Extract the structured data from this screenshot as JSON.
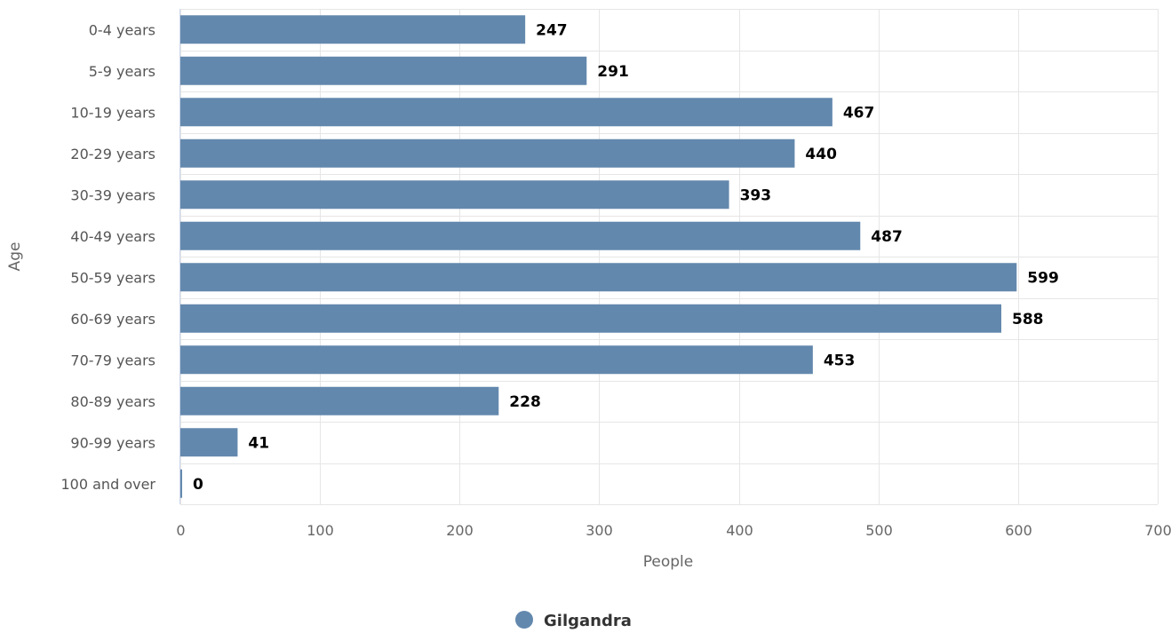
{
  "chart_data": {
    "type": "bar",
    "orientation": "horizontal",
    "categories": [
      "0-4 years",
      "5-9 years",
      "10-19 years",
      "20-29 years",
      "30-39 years",
      "40-49 years",
      "50-59 years",
      "60-69 years",
      "70-79 years",
      "80-89 years",
      "90-99 years",
      "100 and over"
    ],
    "series": [
      {
        "name": "Gilgandra",
        "color": "#6388ad",
        "values": [
          247,
          291,
          467,
          440,
          393,
          487,
          599,
          588,
          453,
          228,
          41,
          0
        ]
      }
    ],
    "xlabel": "People",
    "ylabel": "Age",
    "xlim": [
      0,
      700
    ],
    "xticks": [
      0,
      100,
      200,
      300,
      400,
      500,
      600,
      700
    ],
    "grid": true,
    "data_labels": true,
    "legend_position": "bottom-center"
  }
}
